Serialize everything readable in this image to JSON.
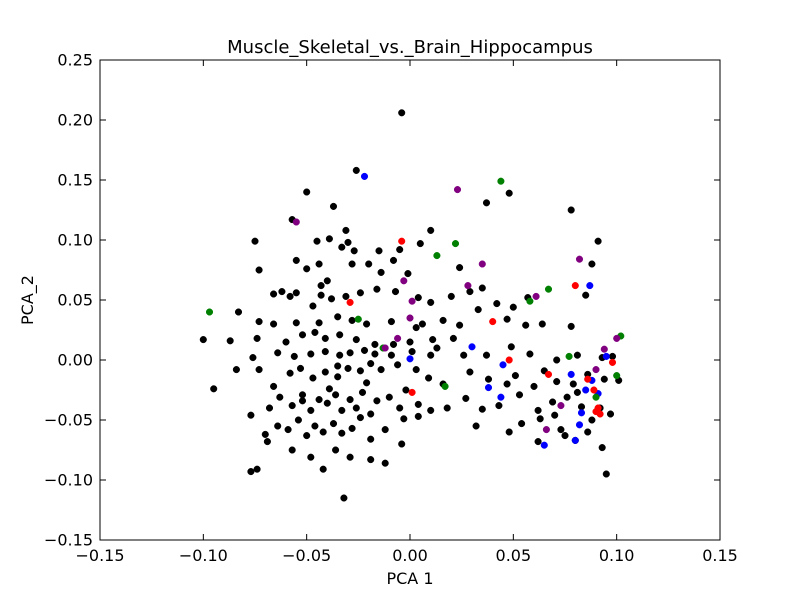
{
  "chart_data": {
    "type": "scatter",
    "title": "Muscle_Skeletal_vs._Brain_Hippocampus",
    "xlabel": "PCA 1",
    "ylabel": "PCA_2",
    "xlim": [
      -0.15,
      0.15
    ],
    "ylim": [
      -0.15,
      0.25
    ],
    "xticks": [
      -0.15,
      -0.1,
      -0.05,
      0.0,
      0.05,
      0.1,
      0.15
    ],
    "xtick_labels": [
      "−0.15",
      "−0.10",
      "−0.05",
      "0.00",
      "0.05",
      "0.10",
      "0.15"
    ],
    "yticks": [
      -0.15,
      -0.1,
      -0.05,
      0.0,
      0.05,
      0.1,
      0.15,
      0.2,
      0.25
    ],
    "ytick_labels": [
      "−0.15",
      "−0.10",
      "−0.05",
      "0.00",
      "0.05",
      "0.10",
      "0.15",
      "0.20",
      "0.25"
    ],
    "grid": false,
    "series": [
      {
        "name": "black",
        "color": "#000000",
        "points": [
          [
            -0.004,
            0.206
          ],
          [
            -0.026,
            0.158
          ],
          [
            -0.05,
            0.14
          ],
          [
            -0.037,
            0.128
          ],
          [
            -0.031,
            0.108
          ],
          [
            -0.057,
            0.117
          ],
          [
            -0.075,
            0.099
          ],
          [
            -0.045,
            0.099
          ],
          [
            -0.039,
            0.101
          ],
          [
            -0.03,
            0.098
          ],
          [
            -0.027,
            0.091
          ],
          [
            -0.033,
            0.094
          ],
          [
            0.01,
            0.108
          ],
          [
            0.005,
            0.097
          ],
          [
            -0.005,
            0.092
          ],
          [
            -0.015,
            0.091
          ],
          [
            0.024,
            0.077
          ],
          [
            -0.073,
            0.075
          ],
          [
            -0.055,
            0.083
          ],
          [
            -0.05,
            0.076
          ],
          [
            -0.044,
            0.08
          ],
          [
            -0.028,
            0.08
          ],
          [
            -0.008,
            0.083
          ],
          [
            -0.02,
            0.08
          ],
          [
            -0.014,
            0.073
          ],
          [
            -0.001,
            0.072
          ],
          [
            -0.066,
            0.055
          ],
          [
            -0.062,
            0.057
          ],
          [
            -0.058,
            0.053
          ],
          [
            -0.055,
            0.056
          ],
          [
            -0.043,
            0.062
          ],
          [
            -0.04,
            0.066
          ],
          [
            -0.043,
            0.054
          ],
          [
            -0.038,
            0.051
          ],
          [
            -0.031,
            0.053
          ],
          [
            -0.024,
            0.056
          ],
          [
            -0.016,
            0.059
          ],
          [
            -0.007,
            0.057
          ],
          [
            0.004,
            0.052
          ],
          [
            0.01,
            0.048
          ],
          [
            0.02,
            0.053
          ],
          [
            0.029,
            0.057
          ],
          [
            0.035,
            0.06
          ],
          [
            0.042,
            0.047
          ],
          [
            0.05,
            0.044
          ],
          [
            0.057,
            0.052
          ],
          [
            0.078,
            0.125
          ],
          [
            0.085,
            0.054
          ],
          [
            0.088,
            0.08
          ],
          [
            0.091,
            0.099
          ],
          [
            0.048,
            0.139
          ],
          [
            0.037,
            0.131
          ],
          [
            -0.083,
            0.04
          ],
          [
            -0.073,
            0.032
          ],
          [
            -0.066,
            0.03
          ],
          [
            -0.055,
            0.031
          ],
          [
            -0.044,
            0.031
          ],
          [
            -0.035,
            0.036
          ],
          [
            -0.028,
            0.033
          ],
          [
            -0.021,
            0.03
          ],
          [
            -0.009,
            0.032
          ],
          [
            0.003,
            0.027
          ],
          [
            0.016,
            0.033
          ],
          [
            0.024,
            0.029
          ],
          [
            0.033,
            0.042
          ],
          [
            0.047,
            0.034
          ],
          [
            0.056,
            0.029
          ],
          [
            0.064,
            0.03
          ],
          [
            0.078,
            0.028
          ],
          [
            -0.1,
            0.017
          ],
          [
            -0.087,
            0.016
          ],
          [
            -0.074,
            0.018
          ],
          [
            -0.06,
            0.015
          ],
          [
            -0.052,
            0.021
          ],
          [
            -0.046,
            0.023
          ],
          [
            -0.041,
            0.018
          ],
          [
            -0.034,
            0.021
          ],
          [
            -0.026,
            0.017
          ],
          [
            -0.017,
            0.013
          ],
          [
            -0.008,
            0.013
          ],
          [
            0.0,
            0.015
          ],
          [
            0.011,
            0.017
          ],
          [
            0.021,
            0.018
          ],
          [
            -0.076,
            0.002
          ],
          [
            -0.064,
            0.006
          ],
          [
            -0.056,
            0.003
          ],
          [
            -0.048,
            0.005
          ],
          [
            -0.041,
            0.007
          ],
          [
            -0.034,
            0.004
          ],
          [
            -0.029,
            0.006
          ],
          [
            -0.022,
            0.008
          ],
          [
            -0.017,
            0.005
          ],
          [
            -0.009,
            0.004
          ],
          [
            0.001,
            0.007
          ],
          [
            0.01,
            0.004
          ],
          [
            0.013,
            0.01
          ],
          [
            0.026,
            0.004
          ],
          [
            0.037,
            0.004
          ],
          [
            0.049,
            0.011
          ],
          [
            0.058,
            0.005
          ],
          [
            0.071,
            0.0
          ],
          [
            0.081,
            0.004
          ],
          [
            0.093,
            0.002
          ],
          [
            0.098,
            0.003
          ],
          [
            -0.095,
            -0.024
          ],
          [
            -0.084,
            -0.008
          ],
          [
            -0.073,
            -0.008
          ],
          [
            -0.066,
            -0.022
          ],
          [
            -0.058,
            -0.011
          ],
          [
            -0.053,
            -0.007
          ],
          [
            -0.047,
            -0.015
          ],
          [
            -0.041,
            -0.01
          ],
          [
            -0.035,
            -0.014
          ],
          [
            -0.03,
            -0.007
          ],
          [
            -0.024,
            -0.009
          ],
          [
            -0.019,
            -0.003
          ],
          [
            -0.014,
            -0.008
          ],
          [
            -0.006,
            -0.004
          ],
          [
            0.003,
            -0.008
          ],
          [
            0.009,
            -0.015
          ],
          [
            0.016,
            -0.02
          ],
          [
            0.029,
            -0.01
          ],
          [
            0.038,
            -0.016
          ],
          [
            0.047,
            -0.02
          ],
          [
            0.051,
            -0.013
          ],
          [
            0.06,
            -0.022
          ],
          [
            0.065,
            -0.009
          ],
          [
            0.071,
            -0.018
          ],
          [
            0.079,
            -0.02
          ],
          [
            0.086,
            -0.012
          ],
          [
            0.094,
            -0.016
          ],
          [
            0.101,
            -0.017
          ],
          [
            -0.077,
            -0.046
          ],
          [
            -0.068,
            -0.04
          ],
          [
            -0.063,
            -0.031
          ],
          [
            -0.057,
            -0.038
          ],
          [
            -0.052,
            -0.029
          ],
          [
            -0.048,
            -0.042
          ],
          [
            -0.044,
            -0.033
          ],
          [
            -0.04,
            -0.036
          ],
          [
            -0.036,
            -0.029
          ],
          [
            -0.033,
            -0.042
          ],
          [
            -0.029,
            -0.033
          ],
          [
            -0.026,
            -0.04
          ],
          [
            -0.023,
            -0.027
          ],
          [
            -0.019,
            -0.045
          ],
          [
            -0.016,
            -0.034
          ],
          [
            -0.01,
            -0.031
          ],
          [
            -0.005,
            -0.04
          ],
          [
            0.004,
            -0.037
          ],
          [
            0.01,
            -0.042
          ],
          [
            0.018,
            -0.04
          ],
          [
            0.027,
            -0.032
          ],
          [
            0.035,
            -0.041
          ],
          [
            0.043,
            -0.038
          ],
          [
            0.053,
            -0.029
          ],
          [
            0.062,
            -0.042
          ],
          [
            0.069,
            -0.035
          ],
          [
            0.076,
            -0.031
          ],
          [
            0.083,
            -0.039
          ],
          [
            0.092,
            -0.04
          ],
          [
            0.097,
            -0.045
          ],
          [
            -0.07,
            -0.062
          ],
          [
            -0.064,
            -0.055
          ],
          [
            -0.059,
            -0.058
          ],
          [
            -0.054,
            -0.05
          ],
          [
            -0.05,
            -0.063
          ],
          [
            -0.046,
            -0.055
          ],
          [
            -0.042,
            -0.06
          ],
          [
            -0.037,
            -0.053
          ],
          [
            -0.033,
            -0.061
          ],
          [
            -0.028,
            -0.057
          ],
          [
            -0.024,
            -0.048
          ],
          [
            -0.019,
            -0.066
          ],
          [
            -0.012,
            -0.058
          ],
          [
            -0.003,
            -0.049
          ],
          [
            0.004,
            -0.047
          ],
          [
            0.032,
            -0.055
          ],
          [
            0.048,
            -0.06
          ],
          [
            0.063,
            -0.049
          ],
          [
            0.073,
            -0.058
          ],
          [
            0.08,
            -0.067
          ],
          [
            0.086,
            -0.06
          ],
          [
            0.093,
            -0.073
          ],
          [
            -0.077,
            -0.093
          ],
          [
            -0.074,
            -0.091
          ],
          [
            -0.069,
            -0.068
          ],
          [
            -0.057,
            -0.075
          ],
          [
            -0.048,
            -0.081
          ],
          [
            -0.042,
            -0.091
          ],
          [
            -0.036,
            -0.075
          ],
          [
            -0.032,
            -0.115
          ],
          [
            -0.029,
            -0.081
          ],
          [
            -0.019,
            -0.083
          ],
          [
            -0.012,
            -0.086
          ],
          [
            -0.004,
            -0.07
          ],
          [
            0.054,
            -0.053
          ],
          [
            0.075,
            -0.063
          ],
          [
            0.088,
            -0.05
          ],
          [
            0.095,
            -0.095
          ],
          [
            0.062,
            -0.068
          ],
          [
            0.07,
            -0.046
          ],
          [
            0.081,
            -0.027
          ],
          [
            -0.052,
            -0.034
          ],
          [
            -0.039,
            -0.024
          ],
          [
            -0.021,
            -0.019
          ],
          [
            -0.002,
            -0.025
          ],
          [
            -0.047,
            0.045
          ],
          [
            -0.035,
            -0.005
          ],
          [
            0.006,
            0.03
          ]
        ]
      },
      {
        "name": "blue",
        "color": "#0000ff",
        "points": [
          [
            -0.022,
            0.153
          ],
          [
            0.0,
            0.001
          ],
          [
            0.03,
            0.011
          ],
          [
            0.038,
            -0.023
          ],
          [
            0.044,
            -0.031
          ],
          [
            0.045,
            -0.004
          ],
          [
            0.065,
            -0.071
          ],
          [
            0.078,
            -0.012
          ],
          [
            0.08,
            -0.067
          ],
          [
            0.082,
            -0.054
          ],
          [
            0.083,
            -0.044
          ],
          [
            0.085,
            -0.025
          ],
          [
            0.087,
            0.062
          ],
          [
            0.088,
            -0.017
          ],
          [
            0.091,
            -0.028
          ],
          [
            0.095,
            0.003
          ]
        ]
      },
      {
        "name": "red",
        "color": "#ff0000",
        "points": [
          [
            -0.029,
            0.048
          ],
          [
            -0.004,
            0.099
          ],
          [
            0.001,
            -0.027
          ],
          [
            0.04,
            0.032
          ],
          [
            0.048,
            0.0
          ],
          [
            0.067,
            -0.012
          ],
          [
            0.08,
            0.062
          ],
          [
            0.086,
            -0.016
          ],
          [
            0.089,
            -0.025
          ],
          [
            0.09,
            -0.043
          ],
          [
            0.091,
            -0.04
          ],
          [
            0.092,
            -0.045
          ],
          [
            0.098,
            -0.002
          ]
        ]
      },
      {
        "name": "green",
        "color": "#008000",
        "points": [
          [
            -0.097,
            0.04
          ],
          [
            -0.025,
            0.034
          ],
          [
            -0.013,
            0.01
          ],
          [
            0.017,
            -0.022
          ],
          [
            0.022,
            0.097
          ],
          [
            0.013,
            0.087
          ],
          [
            0.044,
            0.149
          ],
          [
            0.058,
            0.049
          ],
          [
            0.067,
            0.059
          ],
          [
            0.077,
            0.003
          ],
          [
            0.09,
            -0.031
          ],
          [
            0.1,
            -0.013
          ],
          [
            0.102,
            0.02
          ]
        ]
      },
      {
        "name": "purple",
        "color": "#800080",
        "points": [
          [
            -0.055,
            0.115
          ],
          [
            -0.012,
            0.01
          ],
          [
            -0.003,
            0.066
          ],
          [
            -0.006,
            0.018
          ],
          [
            0.001,
            0.049
          ],
          [
            0.0,
            0.035
          ],
          [
            0.023,
            0.142
          ],
          [
            0.028,
            0.062
          ],
          [
            0.035,
            0.08
          ],
          [
            0.061,
            0.053
          ],
          [
            0.066,
            -0.058
          ],
          [
            0.073,
            -0.038
          ],
          [
            0.082,
            0.084
          ],
          [
            0.09,
            -0.008
          ],
          [
            0.094,
            0.009
          ],
          [
            0.1,
            0.018
          ]
        ]
      }
    ]
  }
}
